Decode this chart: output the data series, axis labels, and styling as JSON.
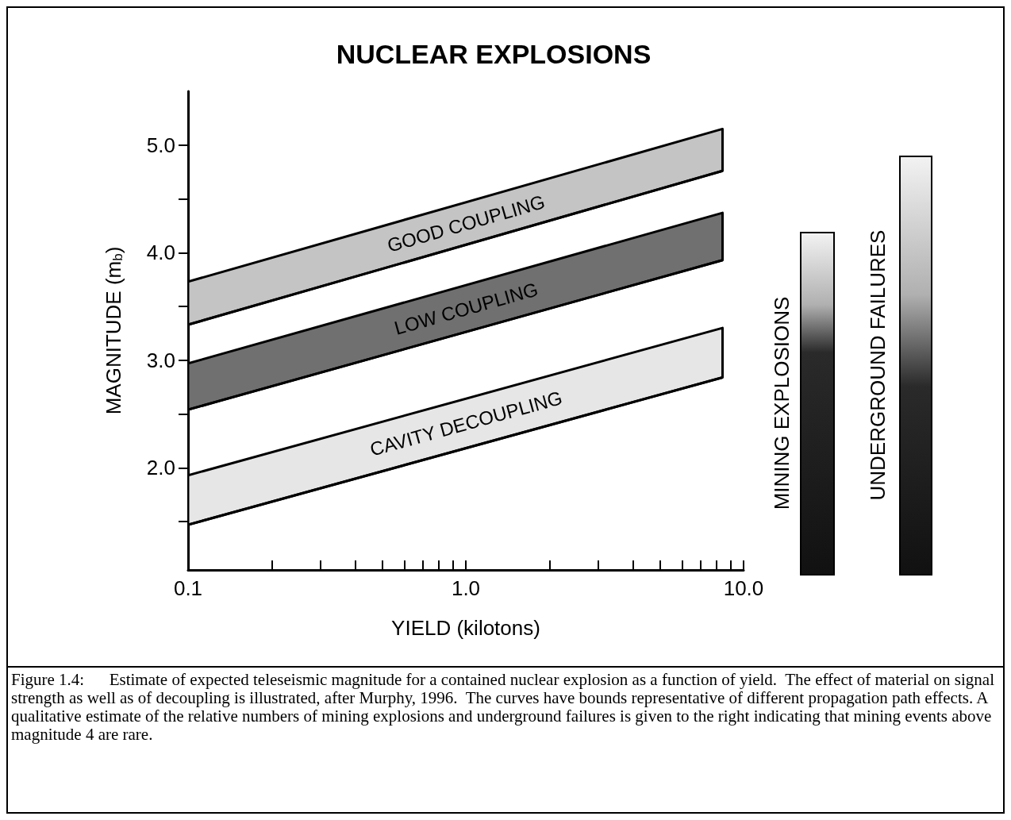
{
  "chart_data": {
    "type": "area",
    "title": "NUCLEAR EXPLOSIONS",
    "xlabel": "YIELD (kilotons)",
    "ylabel": "MAGNITUDE (m$_{b}$)",
    "log": "x",
    "xlim": [
      0.1,
      10
    ],
    "ylim": [
      1.05,
      5.5
    ],
    "xticks": [
      {
        "value": 0.1,
        "label": "0.1"
      },
      {
        "value": 0.2,
        "label": null
      },
      {
        "value": 0.3,
        "label": null
      },
      {
        "value": 0.4,
        "label": null
      },
      {
        "value": 0.5,
        "label": null
      },
      {
        "value": 0.6,
        "label": null
      },
      {
        "value": 0.7,
        "label": null
      },
      {
        "value": 0.8,
        "label": null
      },
      {
        "value": 0.9,
        "label": null
      },
      {
        "value": 1,
        "label": "1.0"
      },
      {
        "value": 2,
        "label": null
      },
      {
        "value": 3,
        "label": null
      },
      {
        "value": 4,
        "label": null
      },
      {
        "value": 5,
        "label": null
      },
      {
        "value": 6,
        "label": null
      },
      {
        "value": 7,
        "label": null
      },
      {
        "value": 8,
        "label": null
      },
      {
        "value": 9,
        "label": null
      },
      {
        "value": 10,
        "label": "10.0"
      }
    ],
    "yticks": [
      {
        "value": 1.5,
        "label": null
      },
      {
        "value": 2,
        "label": "2.0"
      },
      {
        "value": 2.5,
        "label": null
      },
      {
        "value": 3,
        "label": "3.0"
      },
      {
        "value": 3.5,
        "label": null
      },
      {
        "value": 4,
        "label": "4.0"
      },
      {
        "value": 4.5,
        "label": null
      },
      {
        "value": 5,
        "label": "5.0"
      }
    ],
    "grid": false,
    "legend": false,
    "x": [
      0.1,
      8.4
    ],
    "series": [
      {
        "type": "line",
        "color": "#000000",
        "values": [
          3.33,
          4.76
        ]
      },
      {
        "name": "GOOD COUPLING",
        "color": "#c4c4c4",
        "values": [
          3.73,
          5.15
        ]
      },
      {
        "type": "line",
        "color": "#000000",
        "values": [
          2.54,
          3.93
        ]
      },
      {
        "name": "LOW COUPLING",
        "color": "#707070",
        "values": [
          2.97,
          4.37
        ]
      },
      {
        "type": "line",
        "color": "#000000",
        "values": [
          1.47,
          2.84
        ]
      },
      {
        "name": "CAVITY DECOUPLING",
        "color": "#e6e6e6",
        "values": [
          1.93,
          3.3
        ]
      }
    ],
    "annotations": [
      "MINING EXPLOSIONS",
      "UNDERGROUND FAILURES",
      "Figure 1.4:      Estimate of expected teleseismic magnitude for a contained nuclear explosion as a function of yield.  The effect of material on signal strength as well as of decoupling is illustrated, after Murphy, 1996.  The curves have bounds representative of different propagation path effects. A qualitative estimate of the relative numbers of mining explosions and underground failures is given to the right indicating that mining events above magnitude 4 are rare."
    ]
  }
}
